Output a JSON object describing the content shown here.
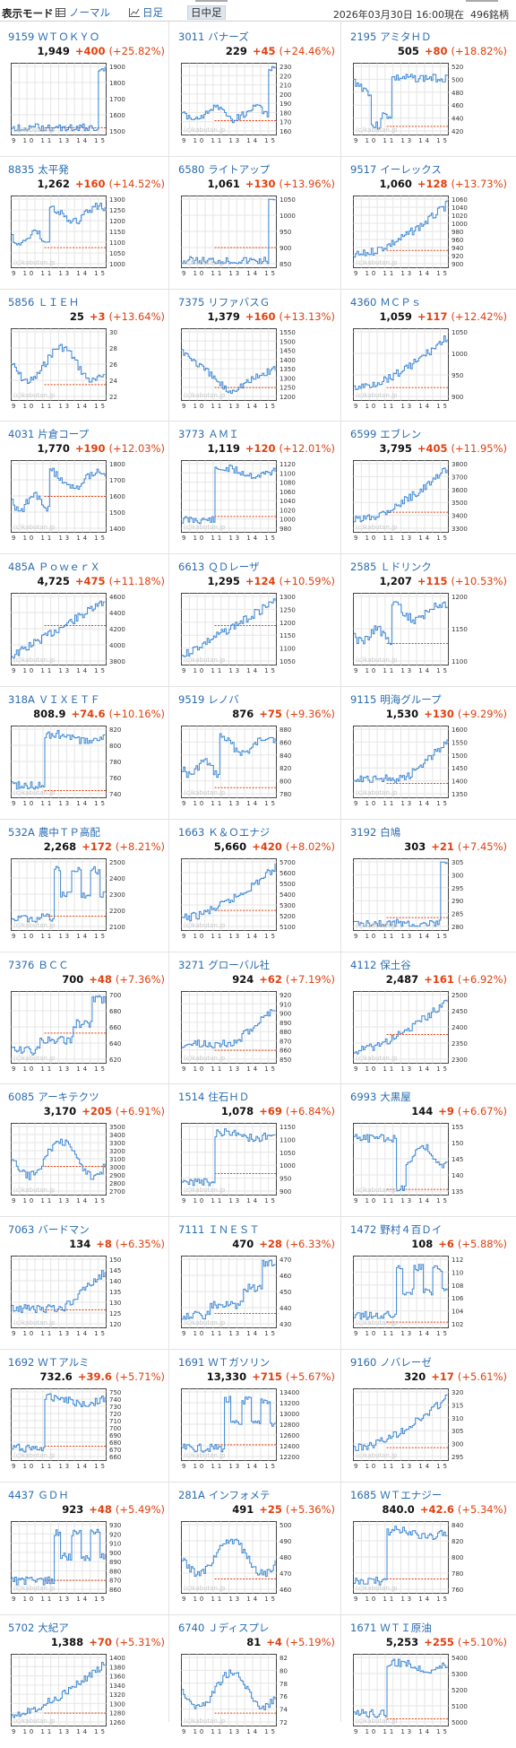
{
  "header": {
    "mode_label": "表示モード",
    "normal_label": "ノーマル",
    "day_label": "日足",
    "intraday_label": "日中足",
    "timestamp": "2026年03月30日 16:00現在",
    "count": "496銘柄",
    "list_icon": "list-icon",
    "chart_icon": "line-chart-icon"
  },
  "chart": {
    "xaxis": "9 10 11 13 14 15",
    "watermark": "(c)kabutan.jp",
    "line_color": "#3b87d4",
    "ref_color": "#e2400f"
  },
  "stocks": [
    {
      "code": "9159",
      "name": "ＷＴＯＫＹＯ",
      "price": "1,949",
      "chg": "+400",
      "pct": "(+25.82%)",
      "yticks": [
        "1900",
        "1800",
        "1700",
        "1600",
        "1500"
      ],
      "ref": 0.9,
      "seed": 1,
      "pattern": "spike"
    },
    {
      "code": "3011",
      "name": "バナーズ",
      "price": "229",
      "chg": "+45",
      "pct": "(+24.46%)",
      "yticks": [
        "230",
        "220",
        "210",
        "200",
        "190",
        "180",
        "170",
        "160"
      ],
      "ref": 0.8,
      "seed": 2,
      "pattern": "lowspike"
    },
    {
      "code": "2195",
      "name": "アミタＨＤ",
      "price": "505",
      "chg": "+80",
      "pct": "(+18.82%)",
      "yticks": [
        "520",
        "500",
        "480",
        "460",
        "440",
        "420"
      ],
      "ref": 0.88,
      "seed": 3,
      "pattern": "dropup"
    },
    {
      "code": "8835",
      "name": "太平発",
      "price": "1,262",
      "chg": "+160",
      "pct": "(+14.52%)",
      "yticks": [
        "1300",
        "1250",
        "1200",
        "1150",
        "1100",
        "1050",
        "1000"
      ],
      "ref": 0.72,
      "seed": 4,
      "pattern": "jump"
    },
    {
      "code": "6580",
      "name": "ライトアップ",
      "price": "1,061",
      "chg": "+130",
      "pct": "(+13.96%)",
      "yticks": [
        "1050",
        "1000",
        "950",
        "900",
        "850"
      ],
      "ref": 0.72,
      "seed": 5,
      "pattern": "spike"
    },
    {
      "code": "9517",
      "name": "イーレックス",
      "price": "1,060",
      "chg": "+128",
      "pct": "(+13.73%)",
      "yticks": [
        "1060",
        "1040",
        "1020",
        "1000",
        "980",
        "960",
        "940",
        "920",
        "900"
      ],
      "ref": 0.76,
      "seed": 6,
      "pattern": "rise"
    },
    {
      "code": "5856",
      "name": "ＬＩＥＨ",
      "price": "25",
      "chg": "+3",
      "pct": "(+13.64%)",
      "yticks": [
        "30",
        "28",
        "26",
        "24",
        "22"
      ],
      "ref": 0.78,
      "seed": 7,
      "pattern": "choppy"
    },
    {
      "code": "7375",
      "name": "リファバスＧ",
      "price": "1,379",
      "chg": "+160",
      "pct": "(+13.13%)",
      "yticks": [
        "1550",
        "1500",
        "1450",
        "1400",
        "1350",
        "1300",
        "1250",
        "1200"
      ],
      "ref": 0.82,
      "seed": 8,
      "pattern": "vshape"
    },
    {
      "code": "4360",
      "name": "ＭＣＰｓ",
      "price": "1,059",
      "chg": "+117",
      "pct": "(+12.42%)",
      "yticks": [
        "1050",
        "1000",
        "950",
        "900"
      ],
      "ref": 0.82,
      "seed": 9,
      "pattern": "rise"
    },
    {
      "code": "4031",
      "name": "片倉コープ",
      "price": "1,770",
      "chg": "+190",
      "pct": "(+12.03%)",
      "yticks": [
        "1800",
        "1700",
        "1600",
        "1500",
        "1400"
      ],
      "ref": 0.5,
      "seed": 10,
      "pattern": "jump"
    },
    {
      "code": "3773",
      "name": "ＡＭＩ",
      "price": "1,119",
      "chg": "+120",
      "pct": "(+12.01%)",
      "yticks": [
        "1120",
        "1100",
        "1080",
        "1060",
        "1040",
        "1020",
        "1000",
        "980"
      ],
      "ref": 0.78,
      "seed": 11,
      "pattern": "jumpflat"
    },
    {
      "code": "6599",
      "name": "エブレン",
      "price": "3,795",
      "chg": "+405",
      "pct": "(+11.95%)",
      "yticks": [
        "3800",
        "3700",
        "3600",
        "3500",
        "3400",
        "3300"
      ],
      "ref": 0.72,
      "seed": 12,
      "pattern": "rise"
    },
    {
      "code": "485A",
      "name": "ＰｏｗｅｒＸ",
      "price": "4,725",
      "chg": "+475",
      "pct": "(+11.18%)",
      "yticks": [
        "4600",
        "4400",
        "4200",
        "4000",
        "3800"
      ],
      "ref": 0.45,
      "seed": 13,
      "pattern": "steady"
    },
    {
      "code": "6613",
      "name": "ＱＤレーザ",
      "price": "1,295",
      "chg": "+124",
      "pct": "(+10.59%)",
      "yticks": [
        "1300",
        "1250",
        "1200",
        "1150",
        "1100",
        "1050"
      ],
      "ref": 0.45,
      "seed": 14,
      "pattern": "steady"
    },
    {
      "code": "2585",
      "name": "Ｌドリンク",
      "price": "1,207",
      "chg": "+115",
      "pct": "(+10.53%)",
      "yticks": [
        "1200",
        "1150",
        "1100"
      ],
      "ref": 0.7,
      "seed": 15,
      "pattern": "jump"
    },
    {
      "code": "318A",
      "name": "ＶＩＸＥＴＦ",
      "price": "808.9",
      "chg": "+74.6",
      "pct": "(+10.16%)",
      "yticks": [
        "820",
        "800",
        "780",
        "760",
        "740"
      ],
      "ref": 0.9,
      "seed": 16,
      "pattern": "jumpflat"
    },
    {
      "code": "9519",
      "name": "レノバ",
      "price": "876",
      "chg": "+75",
      "pct": "(+9.36%)",
      "yticks": [
        "880",
        "860",
        "840",
        "820",
        "800",
        "780"
      ],
      "ref": 0.86,
      "seed": 17,
      "pattern": "jump"
    },
    {
      "code": "9115",
      "name": "明海グループ",
      "price": "1,530",
      "chg": "+130",
      "pct": "(+9.29%)",
      "yticks": [
        "1600",
        "1550",
        "1500",
        "1450",
        "1400",
        "1350"
      ],
      "ref": 0.8,
      "seed": 18,
      "pattern": "uptail"
    },
    {
      "code": "532A",
      "name": "農中ＴＰ高配",
      "price": "2,268",
      "chg": "+172",
      "pct": "(+8.21%)",
      "yticks": [
        "2500",
        "2400",
        "2300",
        "2200",
        "2100"
      ],
      "ref": 0.8,
      "seed": 19,
      "pattern": "jumpchop"
    },
    {
      "code": "1663",
      "name": "Ｋ＆Ｏエナジ",
      "price": "5,660",
      "chg": "+420",
      "pct": "(+8.02%)",
      "yticks": [
        "5700",
        "5600",
        "5500",
        "5400",
        "5300",
        "5200",
        "5100"
      ],
      "ref": 0.72,
      "seed": 20,
      "pattern": "rise"
    },
    {
      "code": "3192",
      "name": "白鳩",
      "price": "303",
      "chg": "+21",
      "pct": "(+7.45%)",
      "yticks": [
        "305",
        "300",
        "295",
        "290",
        "285",
        "280"
      ],
      "ref": 0.82,
      "seed": 21,
      "pattern": "spike"
    },
    {
      "code": "7376",
      "name": "ＢＣＣ",
      "price": "700",
      "chg": "+48",
      "pct": "(+7.36%)",
      "yticks": [
        "700",
        "680",
        "660",
        "640",
        "620"
      ],
      "ref": 0.58,
      "seed": 22,
      "pattern": "stairs"
    },
    {
      "code": "3271",
      "name": "グローバル社",
      "price": "924",
      "chg": "+62",
      "pct": "(+7.19%)",
      "yticks": [
        "920",
        "910",
        "900",
        "890",
        "880",
        "870",
        "860",
        "850"
      ],
      "ref": 0.82,
      "seed": 23,
      "pattern": "uptail"
    },
    {
      "code": "4112",
      "name": "保土谷",
      "price": "2,487",
      "chg": "+161",
      "pct": "(+6.92%)",
      "yticks": [
        "2500",
        "2450",
        "2400",
        "2350",
        "2300"
      ],
      "ref": 0.6,
      "seed": 24,
      "pattern": "rise"
    },
    {
      "code": "6085",
      "name": "アーキテクツ",
      "price": "3,170",
      "chg": "+205",
      "pct": "(+6.91%)",
      "yticks": [
        "3500",
        "3400",
        "3300",
        "3200",
        "3100",
        "3000",
        "2900",
        "2800",
        "2700"
      ],
      "ref": 0.6,
      "seed": 25,
      "pattern": "choppy"
    },
    {
      "code": "1514",
      "name": "住石ＨＤ",
      "price": "1,078",
      "chg": "+69",
      "pct": "(+6.84%)",
      "yticks": [
        "1150",
        "1100",
        "1050",
        "1000",
        "950",
        "900"
      ],
      "ref": 0.7,
      "seed": 26,
      "pattern": "jumpflat"
    },
    {
      "code": "6993",
      "name": "大黒屋",
      "price": "144",
      "chg": "+9",
      "pct": "(+6.67%)",
      "yticks": [
        "155",
        "150",
        "145",
        "140",
        "135"
      ],
      "ref": 0.92,
      "seed": 27,
      "pattern": "fall"
    },
    {
      "code": "7063",
      "name": "バードマン",
      "price": "134",
      "chg": "+8",
      "pct": "(+6.35%)",
      "yticks": [
        "150",
        "145",
        "140",
        "135",
        "130",
        "125",
        "120"
      ],
      "ref": 0.75,
      "seed": 28,
      "pattern": "uptail"
    },
    {
      "code": "7111",
      "name": "ＩＮＥＳＴ",
      "price": "470",
      "chg": "+28",
      "pct": "(+6.33%)",
      "yticks": [
        "470",
        "460",
        "450",
        "440",
        "430"
      ],
      "ref": 0.8,
      "seed": 29,
      "pattern": "stairs"
    },
    {
      "code": "1472",
      "name": "野村４百Ｄイ",
      "price": "108",
      "chg": "+6",
      "pct": "(+5.88%)",
      "yticks": [
        "112",
        "110",
        "108",
        "106",
        "104",
        "102"
      ],
      "ref": 0.92,
      "seed": 30,
      "pattern": "jumpchop"
    },
    {
      "code": "1692",
      "name": "ＷＴアルミ",
      "price": "732.6",
      "chg": "+39.6",
      "pct": "(+5.71%)",
      "yticks": [
        "750",
        "740",
        "730",
        "720",
        "710",
        "700",
        "690",
        "680",
        "670",
        "660"
      ],
      "ref": 0.8,
      "seed": 31,
      "pattern": "jumpflat"
    },
    {
      "code": "1691",
      "name": "ＷＴガソリン",
      "price": "13,330",
      "chg": "+715",
      "pct": "(+5.67%)",
      "yticks": [
        "13400",
        "13200",
        "13000",
        "12800",
        "12600",
        "12400",
        "12200"
      ],
      "ref": 0.78,
      "seed": 32,
      "pattern": "jumpchop"
    },
    {
      "code": "9160",
      "name": "ノバレーゼ",
      "price": "320",
      "chg": "+17",
      "pct": "(+5.61%)",
      "yticks": [
        "320",
        "315",
        "310",
        "305",
        "300",
        "295"
      ],
      "ref": 0.82,
      "seed": 33,
      "pattern": "rise"
    },
    {
      "code": "4437",
      "name": "ＧＤＨ",
      "price": "923",
      "chg": "+48",
      "pct": "(+5.49%)",
      "yticks": [
        "930",
        "920",
        "910",
        "900",
        "890",
        "880",
        "870",
        "860"
      ],
      "ref": 0.82,
      "seed": 34,
      "pattern": "jumpchop"
    },
    {
      "code": "281A",
      "name": "インフォメテ",
      "price": "491",
      "chg": "+25",
      "pct": "(+5.36%)",
      "yticks": [
        "500",
        "490",
        "480",
        "470",
        "460"
      ],
      "ref": 0.8,
      "seed": 35,
      "pattern": "choppy"
    },
    {
      "code": "1685",
      "name": "ＷＴエナジー",
      "price": "840.0",
      "chg": "+42.6",
      "pct": "(+5.34%)",
      "yticks": [
        "840",
        "820",
        "800",
        "780",
        "760"
      ],
      "ref": 0.8,
      "seed": 36,
      "pattern": "jumpflat"
    },
    {
      "code": "5702",
      "name": "大紀ア",
      "price": "1,388",
      "chg": "+70",
      "pct": "(+5.31%)",
      "yticks": [
        "1400",
        "1380",
        "1360",
        "1340",
        "1320",
        "1300",
        "1280",
        "1260"
      ],
      "ref": 0.82,
      "seed": 37,
      "pattern": "rise"
    },
    {
      "code": "6740",
      "name": "Ｊディスプレ",
      "price": "81",
      "chg": "+4",
      "pct": "(+5.19%)",
      "yticks": [
        "82",
        "80",
        "78",
        "76",
        "74",
        "72"
      ],
      "ref": 0.82,
      "seed": 38,
      "pattern": "choppy"
    },
    {
      "code": "1671",
      "name": "ＷＴＩ原油",
      "price": "5,253",
      "chg": "+255",
      "pct": "(+5.10%)",
      "yticks": [
        "5400",
        "5300",
        "5200",
        "5100",
        "5000"
      ],
      "ref": 0.9,
      "seed": 39,
      "pattern": "jumpflat"
    }
  ]
}
